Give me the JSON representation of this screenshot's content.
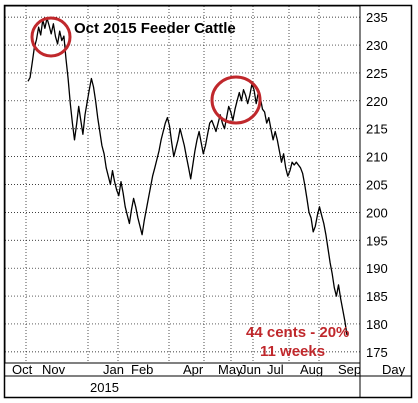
{
  "chart_data": {
    "type": "line",
    "title": "Oct 2015 Feeder Cattle",
    "xlabel": "",
    "ylabel": "",
    "ylim": [
      173,
      237
    ],
    "y_ticks": [
      175,
      180,
      185,
      190,
      195,
      200,
      205,
      210,
      215,
      220,
      225,
      230,
      235
    ],
    "x_tick_labels": [
      "Oct",
      "Nov",
      "Jan",
      "Feb",
      "Apr",
      "May",
      "Jun",
      "Jul",
      "Aug",
      "Sep",
      "Day"
    ],
    "year_label": "2015",
    "grid": true,
    "series": [
      {
        "values": [
          223.5,
          224.2,
          226.8,
          229.5,
          231.0,
          233.2,
          231.8,
          234.5,
          233.0,
          234.8,
          233.5,
          232.0,
          233.8,
          231.5,
          230.2,
          232.5,
          230.8,
          231.6,
          227.5,
          224.0,
          219.5,
          216.0,
          213.0,
          215.8,
          219.0,
          216.5,
          214.0,
          217.5,
          219.8,
          222.0,
          224.0,
          222.5,
          220.0,
          217.0,
          214.5,
          212.0,
          210.5,
          208.0,
          206.5,
          205.0,
          207.5,
          205.5,
          204.0,
          203.0,
          205.5,
          203.5,
          201.0,
          199.5,
          198.0,
          200.5,
          202.5,
          201.0,
          199.0,
          197.5,
          196.0,
          198.5,
          200.5,
          202.5,
          204.5,
          206.5,
          208.0,
          209.5,
          211.0,
          213.0,
          214.5,
          216.0,
          217.0,
          215.5,
          212.5,
          210.0,
          211.5,
          213.0,
          215.0,
          213.5,
          212.0,
          210.0,
          208.0,
          206.0,
          208.5,
          211.0,
          213.0,
          214.5,
          212.5,
          210.5,
          212.0,
          214.0,
          216.0,
          216.5,
          215.5,
          214.5,
          216.0,
          217.5,
          216.0,
          215.0,
          217.0,
          219.0,
          218.0,
          216.5,
          218.5,
          220.0,
          221.5,
          220.0,
          222.0,
          221.0,
          219.5,
          221.0,
          223.0,
          222.0,
          219.5,
          221.5,
          220.5,
          218.5,
          218.0,
          216.0,
          217.0,
          215.0,
          213.0,
          214.5,
          213.0,
          211.0,
          209.0,
          210.5,
          208.0,
          206.5,
          207.5,
          209.0,
          208.5,
          209.0,
          208.5,
          208.0,
          207.0,
          205.0,
          202.5,
          200.0,
          199.0,
          196.5,
          197.5,
          199.5,
          201.0,
          199.5,
          198.0,
          196.0,
          193.5,
          191.0,
          189.0,
          186.5,
          185.0,
          187.0,
          184.5,
          182.5,
          180.5,
          178.0
        ]
      }
    ],
    "annotations": {
      "line1": "44 cents - 20%",
      "line2": "11 weeks"
    },
    "colors": {
      "line": "#000000",
      "annotation": "#c0282c",
      "circle": "#c0282c"
    }
  }
}
